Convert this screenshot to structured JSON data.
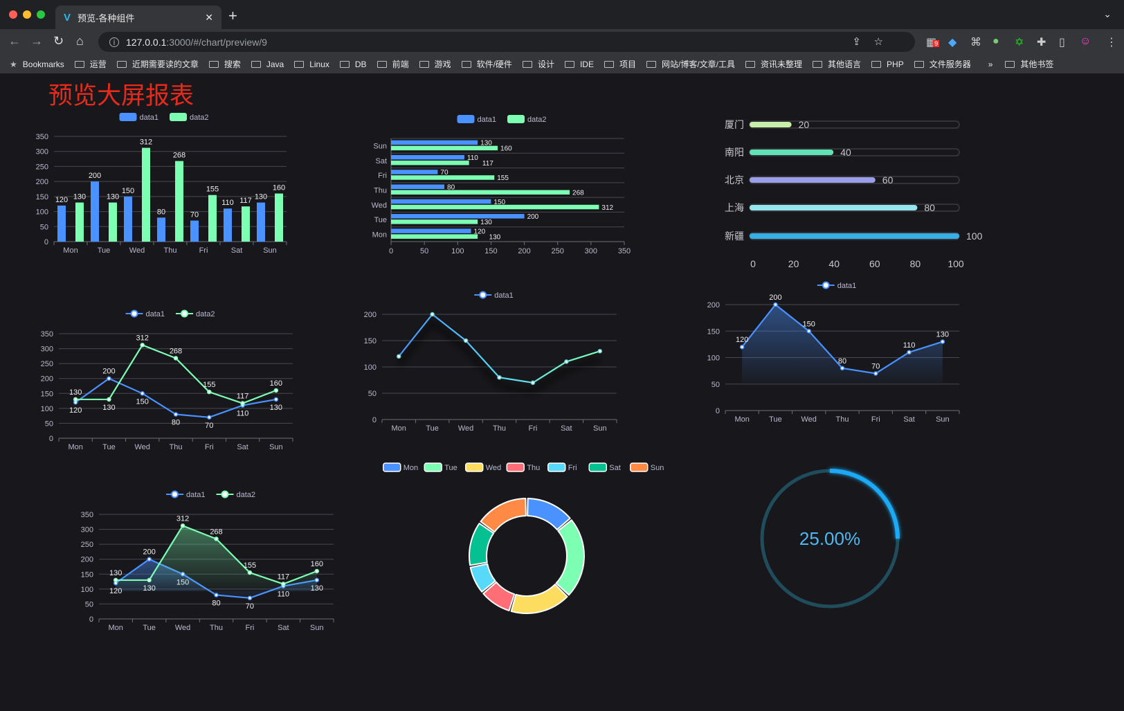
{
  "browser": {
    "tab_title": "预览-各种组件",
    "url_host": "127.0.0.1",
    "url_path": ":3000/#/chart/preview/9",
    "ext_badge": "9",
    "bookmarks": [
      "Bookmarks",
      "运营",
      "近期需要读的文章",
      "搜索",
      "Java",
      "Linux",
      "DB",
      "前端",
      "游戏",
      "软件/硬件",
      "设计",
      "IDE",
      "项目",
      "网站/博客/文章/工具",
      "资讯未整理",
      "其他语言",
      "PHP",
      "文件服务器"
    ],
    "more": "»",
    "other_bookmarks": "其他书签"
  },
  "page": {
    "title": "预览大屏报表"
  },
  "colors": {
    "data1": "#4992ff",
    "data2": "#7cffb2",
    "title": "#e82a1a",
    "background": "#18181c"
  },
  "chart_data": [
    {
      "type": "bar",
      "legend": [
        "data1",
        "data2"
      ],
      "legend_position": "top",
      "categories": [
        "Mon",
        "Tue",
        "Wed",
        "Thu",
        "Fri",
        "Sat",
        "Sun"
      ],
      "series": [
        {
          "name": "data1",
          "values": [
            120,
            200,
            150,
            80,
            70,
            110,
            130
          ]
        },
        {
          "name": "data2",
          "values": [
            130,
            130,
            312,
            268,
            155,
            117,
            160
          ]
        }
      ],
      "ylim": [
        0,
        350
      ],
      "yticks": [
        0,
        50,
        100,
        150,
        200,
        250,
        300,
        350
      ],
      "grid": true,
      "data_labels": true
    },
    {
      "type": "bar",
      "orientation": "horizontal",
      "legend": [
        "data1",
        "data2"
      ],
      "legend_position": "top",
      "categories": [
        "Mon",
        "Tue",
        "Wed",
        "Thu",
        "Fri",
        "Sat",
        "Sun"
      ],
      "series": [
        {
          "name": "data1",
          "values": [
            120,
            200,
            150,
            80,
            70,
            110,
            130
          ]
        },
        {
          "name": "data2",
          "values": [
            130,
            130,
            312,
            268,
            155,
            117,
            160
          ]
        }
      ],
      "xlim": [
        0,
        350
      ],
      "xticks": [
        0,
        50,
        100,
        150,
        200,
        250,
        300,
        350
      ],
      "grid": true,
      "data_labels": true
    },
    {
      "type": "bar",
      "orientation": "horizontal",
      "style": "progress",
      "categories": [
        "厦门",
        "南阳",
        "北京",
        "上海",
        "新疆"
      ],
      "values": [
        20,
        40,
        60,
        80,
        100
      ],
      "colors": [
        "#c8f0a8",
        "#5fe3b5",
        "#9a9de8",
        "#95e6ee",
        "#38aee6"
      ],
      "xlim": [
        0,
        100
      ],
      "xticks": [
        0,
        20,
        40,
        60,
        80,
        100
      ],
      "data_labels": true
    },
    {
      "type": "line",
      "legend": [
        "data1",
        "data2"
      ],
      "legend_position": "top",
      "categories": [
        "Mon",
        "Tue",
        "Wed",
        "Thu",
        "Fri",
        "Sat",
        "Sun"
      ],
      "series": [
        {
          "name": "data1",
          "values": [
            120,
            200,
            150,
            80,
            70,
            110,
            130
          ]
        },
        {
          "name": "data2",
          "values": [
            130,
            130,
            312,
            268,
            155,
            117,
            160
          ]
        }
      ],
      "ylim": [
        0,
        350
      ],
      "yticks": [
        0,
        50,
        100,
        150,
        200,
        250,
        300,
        350
      ],
      "grid": true,
      "data_labels": true
    },
    {
      "type": "line",
      "legend": [
        "data1"
      ],
      "legend_position": "top",
      "categories": [
        "Mon",
        "Tue",
        "Wed",
        "Thu",
        "Fri",
        "Sat",
        "Sun"
      ],
      "series": [
        {
          "name": "data1",
          "values": [
            120,
            200,
            150,
            80,
            70,
            110,
            130
          ]
        }
      ],
      "ylim": [
        0,
        200
      ],
      "yticks": [
        0,
        50,
        100,
        150,
        200
      ],
      "grid": true,
      "data_labels": false,
      "gradient_line": true
    },
    {
      "type": "area",
      "legend": [
        "data1"
      ],
      "legend_position": "top",
      "categories": [
        "Mon",
        "Tue",
        "Wed",
        "Thu",
        "Fri",
        "Sat",
        "Sun"
      ],
      "series": [
        {
          "name": "data1",
          "values": [
            120,
            200,
            150,
            80,
            70,
            110,
            130
          ]
        }
      ],
      "ylim": [
        0,
        200
      ],
      "yticks": [
        0,
        50,
        100,
        150,
        200
      ],
      "grid": true,
      "data_labels": true
    },
    {
      "type": "area",
      "legend": [
        "data1",
        "data2"
      ],
      "legend_position": "top",
      "categories": [
        "Mon",
        "Tue",
        "Wed",
        "Thu",
        "Fri",
        "Sat",
        "Sun"
      ],
      "series": [
        {
          "name": "data1",
          "values": [
            120,
            200,
            150,
            80,
            70,
            110,
            130
          ]
        },
        {
          "name": "data2",
          "values": [
            130,
            130,
            312,
            268,
            155,
            117,
            160
          ]
        }
      ],
      "ylim": [
        0,
        350
      ],
      "yticks": [
        0,
        50,
        100,
        150,
        200,
        250,
        300,
        350
      ],
      "grid": true,
      "data_labels": true
    },
    {
      "type": "pie",
      "style": "donut",
      "legend": [
        "Mon",
        "Tue",
        "Wed",
        "Thu",
        "Fri",
        "Sat",
        "Sun"
      ],
      "legend_position": "top",
      "values": [
        120,
        200,
        150,
        80,
        70,
        110,
        130
      ],
      "colors": [
        "#4992ff",
        "#7cffb2",
        "#fddd60",
        "#ff6e76",
        "#58d9f9",
        "#05c091",
        "#ff8a45"
      ]
    },
    {
      "type": "gauge",
      "style": "progress-ring",
      "value": 0.25,
      "label": "25.00%",
      "color": "#1aa9f5",
      "track_color": "#1f4d5c"
    }
  ]
}
